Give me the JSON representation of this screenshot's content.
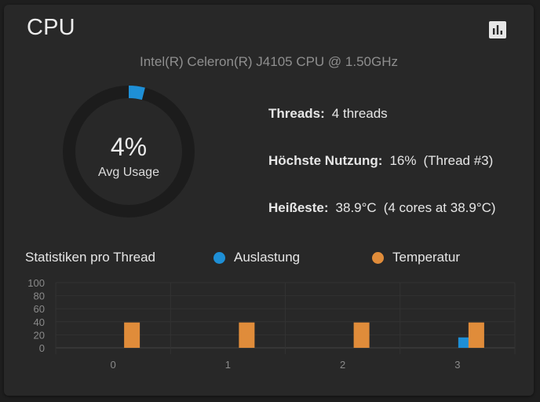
{
  "card": {
    "title": "CPU",
    "model": "Intel(R) Celeron(R) J4105 CPU @ 1.50GHz",
    "chart_toggle_icon": "bar-chart-icon"
  },
  "gauge": {
    "value_text": "4%",
    "label": "Avg Usage",
    "percent": 4,
    "track_color": "#1c1c1c",
    "fill_color": "#1e8fd6"
  },
  "stats": {
    "threads_label": "Threads:",
    "threads_value": "4 threads",
    "peak_label": "Höchste Nutzung:",
    "peak_value": "16%",
    "peak_detail": "(Thread #3)",
    "hottest_label": "Heißeste:",
    "hottest_value": "38.9°C",
    "hottest_detail": "(4 cores at 38.9°C)"
  },
  "section": {
    "title": "Statistiken pro Thread"
  },
  "legend": {
    "usage_label": "Auslastung",
    "usage_color": "#1e8fd6",
    "temp_label": "Temperatur",
    "temp_color": "#e08c3a"
  },
  "chart_data": {
    "type": "bar",
    "categories": [
      "0",
      "1",
      "2",
      "3"
    ],
    "series": [
      {
        "name": "Auslastung",
        "values": [
          0,
          0,
          0,
          16
        ],
        "color": "#1e8fd6"
      },
      {
        "name": "Temperatur",
        "values": [
          38.9,
          38.9,
          38.9,
          38.9
        ],
        "color": "#e08c3a"
      }
    ],
    "yticks": [
      "0",
      "20",
      "40",
      "60",
      "80",
      "100"
    ],
    "ylim": [
      0,
      100
    ],
    "grid": true
  }
}
